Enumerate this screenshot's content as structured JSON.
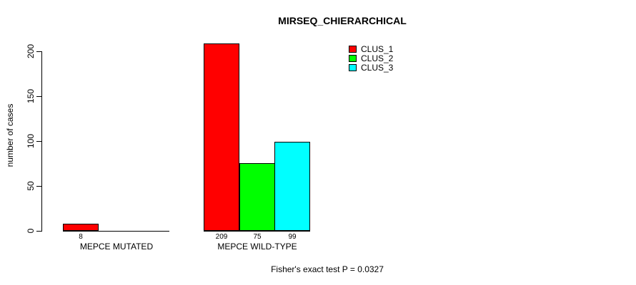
{
  "chart_data": {
    "type": "bar",
    "title": "MIRSEQ_CHIERARCHICAL",
    "ylabel": "number of cases",
    "xlabel": "",
    "categories": [
      "MEPCE MUTATED",
      "MEPCE WILD-TYPE"
    ],
    "series": [
      {
        "name": "CLUS_1",
        "color": "#FF0000",
        "values": [
          8,
          209
        ]
      },
      {
        "name": "CLUS_2",
        "color": "#00FF00",
        "values": [
          0,
          75
        ]
      },
      {
        "name": "CLUS_3",
        "color": "#00FFFF",
        "values": [
          0,
          99
        ]
      }
    ],
    "bar_value_labels": [
      [
        "8",
        "",
        ""
      ],
      [
        "209",
        "75",
        "99"
      ]
    ],
    "yticks": [
      0,
      50,
      100,
      150,
      200
    ],
    "ylim": [
      0,
      220
    ],
    "grid": false,
    "legend_position": "top-right",
    "annotation": "Fisher's exact test P = 0.0327"
  }
}
